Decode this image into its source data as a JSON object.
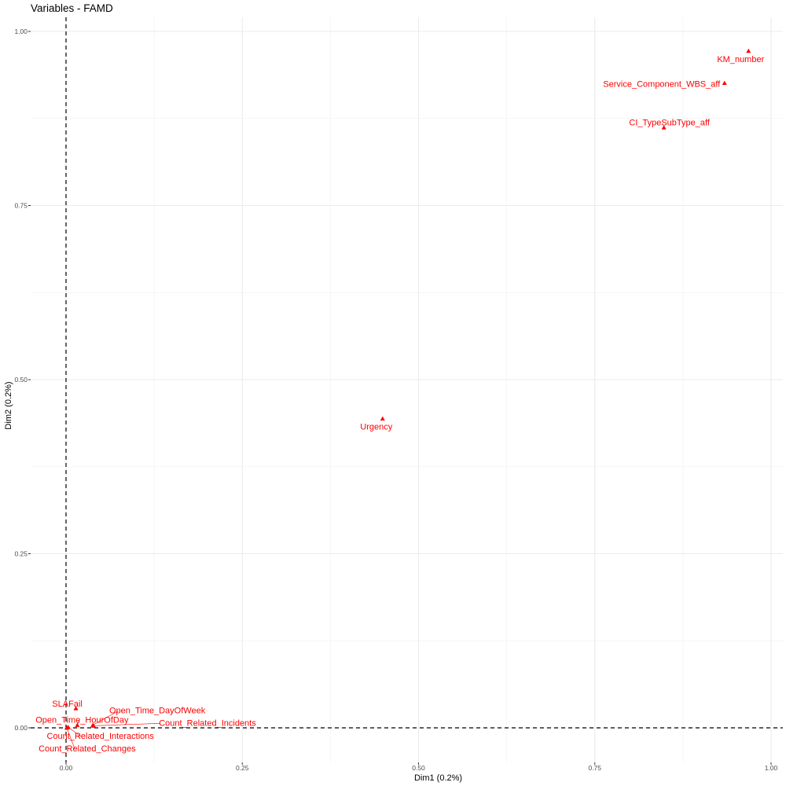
{
  "chart_data": {
    "type": "scatter",
    "title": "Variables - FAMD",
    "xlabel": "Dim1 (0.2%)",
    "ylabel": "Dim2 (0.2%)",
    "xlim": [
      -0.05,
      1.02
    ],
    "ylim": [
      -0.05,
      1.02
    ],
    "x_ticks": [
      0.0,
      0.25,
      0.5,
      0.75,
      1.0
    ],
    "x_tick_labels": [
      "0.00",
      "0.25",
      "0.50",
      "0.75",
      "1.00"
    ],
    "y_ticks": [
      0.0,
      0.25,
      0.5,
      0.75,
      1.0
    ],
    "y_tick_labels": [
      "0.00",
      "0.25",
      "0.50",
      "0.75",
      "1.00"
    ],
    "grid": true,
    "reference_lines": {
      "x": 0,
      "y": 0,
      "style": "dashed"
    },
    "marker": "triangle",
    "color": "#ff0000",
    "points": [
      {
        "label": "KM_number",
        "x": 0.968,
        "y": 0.972
      },
      {
        "label": "Service_Component_WBS_aff",
        "x": 0.934,
        "y": 0.926
      },
      {
        "label": "CI_TypeSubType_aff",
        "x": 0.848,
        "y": 0.862
      },
      {
        "label": "Urgency",
        "x": 0.449,
        "y": 0.444
      },
      {
        "label": "SLAFail",
        "x": 0.014,
        "y": 0.028
      },
      {
        "label": "Open_Time_DayOfWeek",
        "x": 0.038,
        "y": 0.004
      },
      {
        "label": "Open_Time_HourOfDay",
        "x": 0.016,
        "y": 0.004
      },
      {
        "label": "Count_Related_Incidents",
        "x": 0.039,
        "y": 0.003
      },
      {
        "label": "Count_Related_Interactions",
        "x": 0.003,
        "y": 0.001
      },
      {
        "label": "Count_Related_Changes",
        "x": 0.001,
        "y": 0.0
      }
    ]
  }
}
